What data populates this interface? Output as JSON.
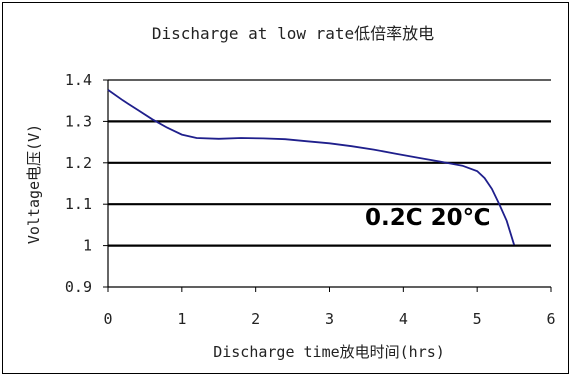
{
  "chart_data": {
    "type": "line",
    "title": "Discharge at low rate低倍率放电",
    "xlabel": "Discharge time放电时间(hrs)",
    "ylabel": "Voltage电压(V)",
    "xlim": [
      0,
      6
    ],
    "ylim": [
      0.9,
      1.4
    ],
    "xticks": [
      0,
      1,
      2,
      3,
      4,
      5,
      6
    ],
    "yticks": [
      0.9,
      1,
      1.1,
      1.2,
      1.3,
      1.4
    ],
    "xtick_labels": [
      "0",
      "1",
      "2",
      "3",
      "4",
      "5",
      "6"
    ],
    "ytick_labels": [
      "0.9",
      "1",
      "1.1",
      "1.2",
      "1.3",
      "1.4"
    ],
    "grid": "horizontal",
    "annotation": "0.2C 20℃",
    "line_color": "#1f1f8c",
    "series": [
      {
        "name": "",
        "x": [
          0,
          0.2,
          0.4,
          0.6,
          0.8,
          1.0,
          1.2,
          1.5,
          1.8,
          2.1,
          2.4,
          2.7,
          3.0,
          3.3,
          3.6,
          3.9,
          4.2,
          4.5,
          4.8,
          5.0,
          5.1,
          5.2,
          5.3,
          5.4,
          5.5
        ],
        "y": [
          1.376,
          1.351,
          1.328,
          1.305,
          1.285,
          1.268,
          1.26,
          1.258,
          1.26,
          1.259,
          1.257,
          1.252,
          1.247,
          1.24,
          1.232,
          1.222,
          1.212,
          1.203,
          1.193,
          1.18,
          1.163,
          1.137,
          1.1,
          1.06,
          1.002
        ]
      }
    ]
  }
}
